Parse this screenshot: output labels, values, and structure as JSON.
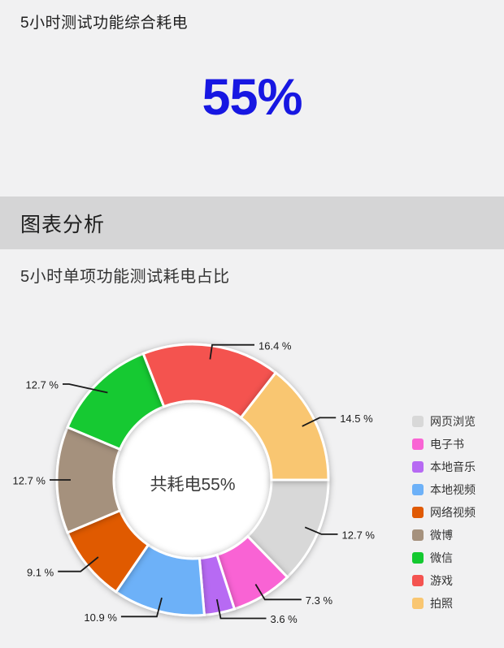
{
  "header": {
    "title": "5小时测试功能综合耗电",
    "total_value": "55%"
  },
  "section_bar": {
    "label": "图表分析"
  },
  "chart_section": {
    "subtitle": "5小时单项功能测试耗电占比"
  },
  "chart_data": {
    "type": "pie",
    "style": "donut",
    "center_label": "共耗电55%",
    "start_angle_clockwise_from_top": 90,
    "legend_position": "right",
    "series": [
      {
        "name": "网页浏览",
        "value": 12.7,
        "label": "12.7 %",
        "color": "#d8d8d8"
      },
      {
        "name": "电子书",
        "value": 7.3,
        "label": "7.3 %",
        "color": "#f964d4"
      },
      {
        "name": "本地音乐",
        "value": 3.6,
        "label": "3.6 %",
        "color": "#b76af3"
      },
      {
        "name": "本地视频",
        "value": 10.9,
        "label": "10.9 %",
        "color": "#6db1f8"
      },
      {
        "name": "网络视频",
        "value": 9.1,
        "label": "9.1 %",
        "color": "#e05a05"
      },
      {
        "name": "微博",
        "value": 12.7,
        "label": "12.7 %",
        "color": "#a5917d"
      },
      {
        "name": "微信",
        "value": 12.7,
        "label": "12.7 %",
        "color": "#14c930"
      },
      {
        "name": "游戏",
        "value": 16.4,
        "label": "16.4 %",
        "color": "#f45350"
      },
      {
        "name": "拍照",
        "value": 14.5,
        "label": "14.5 %",
        "color": "#f9c671"
      }
    ]
  },
  "colors": {
    "accent_blue": "#1717e2",
    "page_bg": "#f1f1f2",
    "band_bg": "#d5d5d6",
    "donut_hole": "#ffffff",
    "label_line": "#1a1a1a"
  }
}
